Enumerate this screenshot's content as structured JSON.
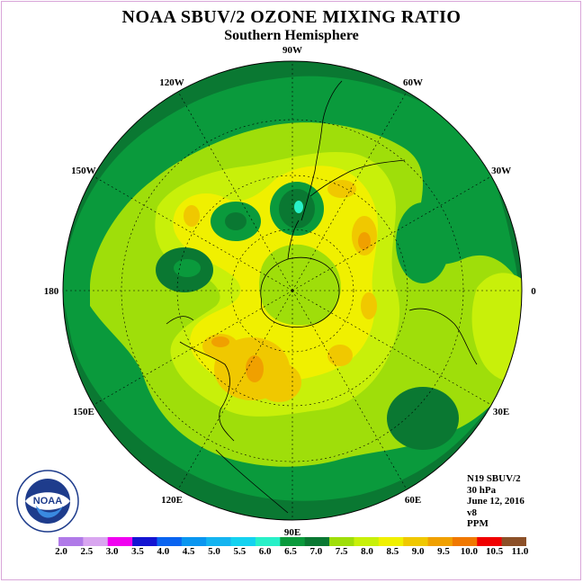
{
  "title": "NOAA SBUV/2 OZONE MIXING RATIO",
  "subtitle": "Southern Hemisphere",
  "longitude_labels": [
    {
      "text": "90W",
      "angle": -90
    },
    {
      "text": "60W",
      "angle": -60
    },
    {
      "text": "30W",
      "angle": -30
    },
    {
      "text": "0",
      "angle": 0
    },
    {
      "text": "30E",
      "angle": 30
    },
    {
      "text": "60E",
      "angle": 60
    },
    {
      "text": "90E",
      "angle": 90
    },
    {
      "text": "120E",
      "angle": 120
    },
    {
      "text": "150E",
      "angle": 150
    },
    {
      "text": "180",
      "angle": 180
    },
    {
      "text": "150W",
      "angle": 210
    },
    {
      "text": "120W",
      "angle": 240
    }
  ],
  "info": {
    "satellite": "N19 SBUV/2",
    "level": "30 hPa",
    "date": "June 12, 2016",
    "version": "v8",
    "units": "PPM"
  },
  "logo": {
    "text": "NOAA",
    "ring_text": "NATIONAL OCEANIC AND ATMOSPHERIC ADMINISTRATION · U.S. DEPARTMENT OF COMMERCE"
  },
  "colorbar": {
    "ticks": [
      "2.0",
      "2.5",
      "3.0",
      "3.5",
      "4.0",
      "4.5",
      "5.0",
      "5.5",
      "6.0",
      "6.5",
      "7.0",
      "7.5",
      "8.0",
      "8.5",
      "9.0",
      "9.5",
      "10.0",
      "10.5",
      "11.0"
    ],
    "colors": [
      "#b07ae8",
      "#d9a6f0",
      "#f000f0",
      "#1414d2",
      "#0a64f0",
      "#0a96f0",
      "#14b4f0",
      "#14d2f0",
      "#28f0c8",
      "#0a9a3c",
      "#0a7832",
      "#9fde0a",
      "#c8f00a",
      "#f0f000",
      "#f0c800",
      "#f0a000",
      "#f07800",
      "#f00000",
      "#8c5028"
    ]
  },
  "colors": {
    "ocean_base": "#0a7832",
    "c65": "#0a9a3c",
    "c75": "#9fde0a",
    "c80": "#c8f00a",
    "c85": "#f0f000",
    "c90": "#f0c800",
    "c95": "#f0a000",
    "c55": "#28f0c8"
  }
}
